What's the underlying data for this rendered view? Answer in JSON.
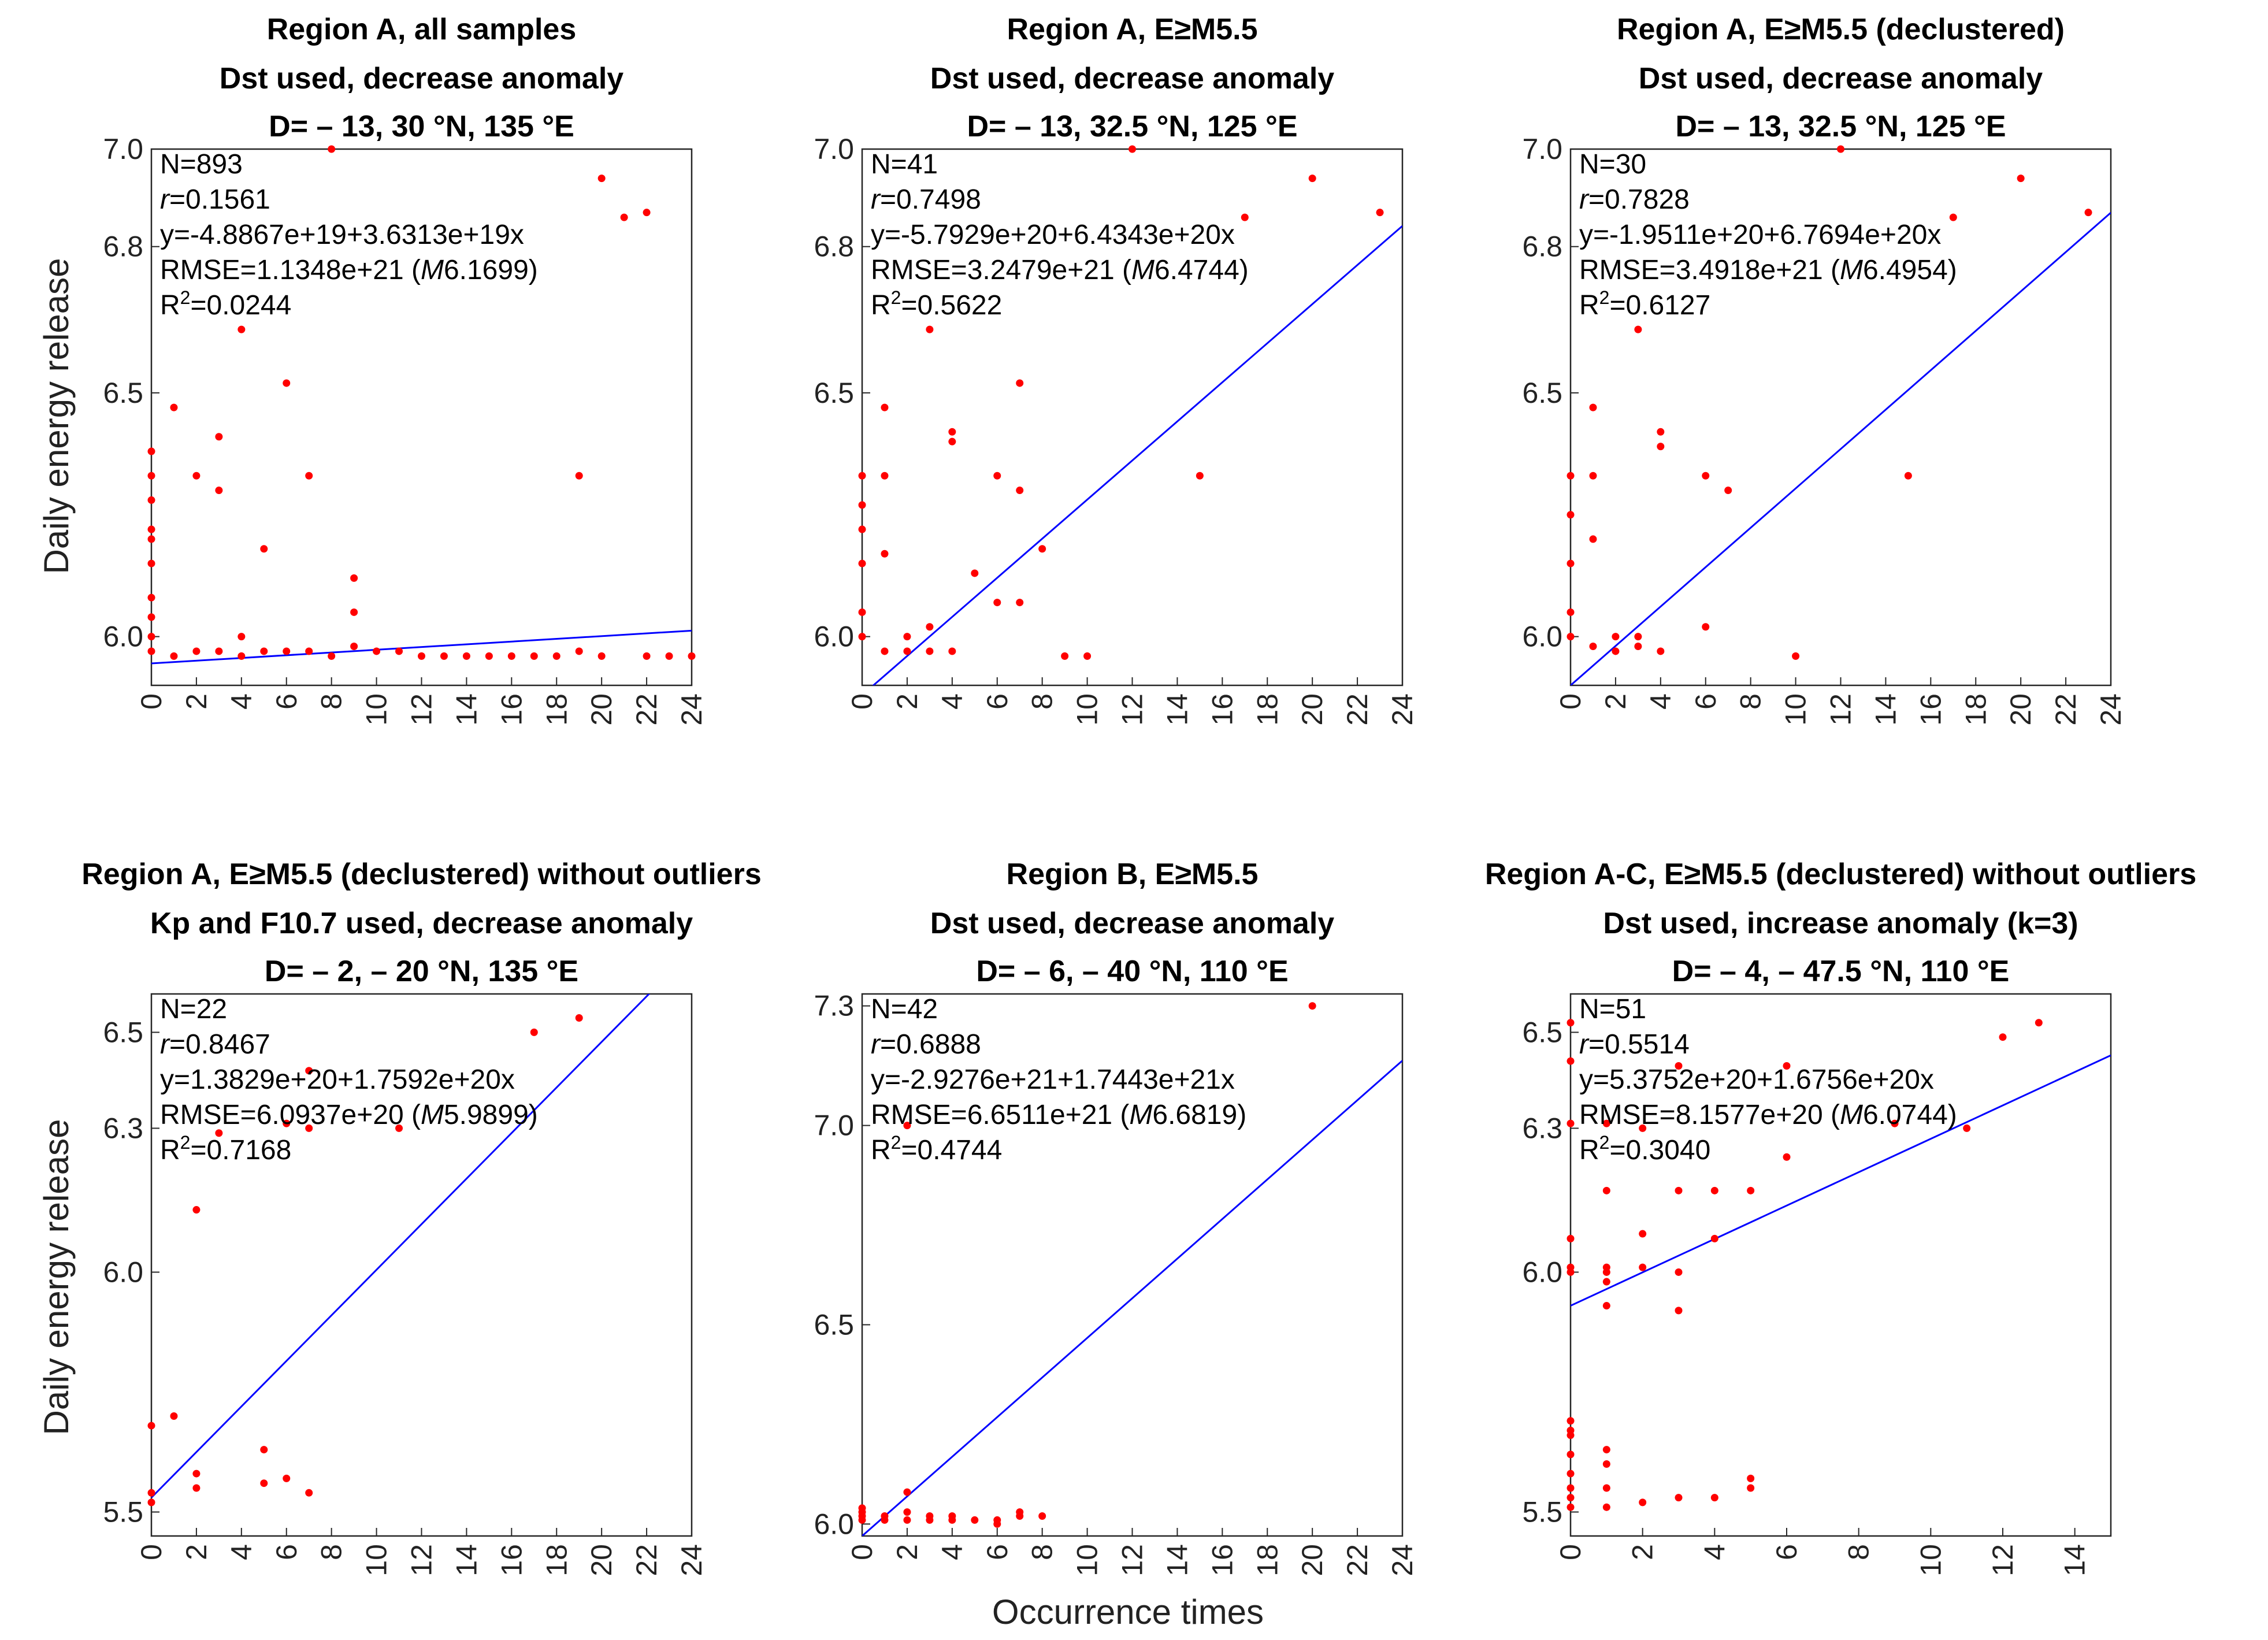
{
  "figure": {
    "ylabel": "Daily energy release",
    "xlabel": "Occurrence times"
  },
  "colors": {
    "points": "#ff0000",
    "fit_line": "#0000ff",
    "axes": "#262626"
  },
  "chart_data": [
    {
      "type": "scatter",
      "title_lines": [
        "Region A, all samples",
        "Dst used, decrease anomaly",
        "D= – 13, 30 °N, 135 °E"
      ],
      "xlim": [
        0,
        24
      ],
      "xticks": [
        0,
        2,
        4,
        6,
        8,
        10,
        12,
        14,
        16,
        18,
        20,
        22,
        24
      ],
      "ylim": [
        5.9,
        7.0
      ],
      "yticks": [
        6.0,
        6.5,
        6.8,
        7.0
      ],
      "stats": {
        "n": "N=893",
        "r_label": "r",
        "r_value": "=0.1561",
        "eq": "y=-4.8867e+19+3.6313e+19x",
        "rmse": "RMSE=1.1348e+21 (",
        "rmse_m": "M",
        "rmse_mag": "6.1699)",
        "r2": "R",
        "r2_sup": "2",
        "r2_value": "=0.0244"
      },
      "fit": {
        "intercept": 5.945,
        "slope": 0.0028
      },
      "points": [
        [
          0,
          6.38
        ],
        [
          0,
          6.33
        ],
        [
          0,
          6.28
        ],
        [
          0,
          6.22
        ],
        [
          0,
          6.2
        ],
        [
          0,
          6.15
        ],
        [
          0,
          6.08
        ],
        [
          0,
          6.04
        ],
        [
          0,
          6.0
        ],
        [
          0,
          5.97
        ],
        [
          1,
          6.47
        ],
        [
          1,
          5.96
        ],
        [
          2,
          6.33
        ],
        [
          2,
          5.97
        ],
        [
          3,
          6.41
        ],
        [
          3,
          6.3
        ],
        [
          3,
          5.97
        ],
        [
          4,
          6.63
        ],
        [
          4,
          6.0
        ],
        [
          4,
          5.96
        ],
        [
          5,
          6.18
        ],
        [
          5,
          5.97
        ],
        [
          6,
          6.52
        ],
        [
          6,
          5.97
        ],
        [
          7,
          6.33
        ],
        [
          7,
          5.97
        ],
        [
          8,
          7.0
        ],
        [
          8,
          5.96
        ],
        [
          9,
          6.12
        ],
        [
          9,
          6.05
        ],
        [
          9,
          5.98
        ],
        [
          10,
          5.97
        ],
        [
          11,
          5.97
        ],
        [
          12,
          5.96
        ],
        [
          13,
          5.96
        ],
        [
          14,
          5.96
        ],
        [
          15,
          5.96
        ],
        [
          16,
          5.96
        ],
        [
          17,
          5.96
        ],
        [
          18,
          5.96
        ],
        [
          19,
          6.33
        ],
        [
          19,
          5.97
        ],
        [
          20,
          6.94
        ],
        [
          20,
          5.96
        ],
        [
          21,
          6.86
        ],
        [
          22,
          6.87
        ],
        [
          22,
          5.96
        ],
        [
          23,
          5.96
        ],
        [
          24,
          5.96
        ]
      ]
    },
    {
      "type": "scatter",
      "title_lines": [
        "Region A, E≥M5.5",
        "Dst used, decrease anomaly",
        "D= – 13, 32.5 °N, 125 °E"
      ],
      "xlim": [
        0,
        24
      ],
      "xticks": [
        0,
        2,
        4,
        6,
        8,
        10,
        12,
        14,
        16,
        18,
        20,
        22,
        24
      ],
      "ylim": [
        5.9,
        7.0
      ],
      "yticks": [
        6.0,
        6.5,
        6.8,
        7.0
      ],
      "stats": {
        "n": "N=41",
        "r_label": "r",
        "r_value": "=0.7498",
        "eq": "y=-5.7929e+20+6.4343e+20x",
        "rmse": "RMSE=3.2479e+21 (",
        "rmse_m": "M",
        "rmse_mag": "6.4744)",
        "r2": "R",
        "r2_sup": "2",
        "r2_value": "=0.5622"
      },
      "fit": {
        "intercept": 5.88,
        "slope": 0.0401
      },
      "points": [
        [
          0,
          6.33
        ],
        [
          0,
          6.27
        ],
        [
          0,
          6.22
        ],
        [
          0,
          6.15
        ],
        [
          0,
          6.05
        ],
        [
          0,
          6.0
        ],
        [
          1,
          6.47
        ],
        [
          1,
          6.33
        ],
        [
          1,
          6.17
        ],
        [
          1,
          5.97
        ],
        [
          2,
          6.0
        ],
        [
          2,
          5.97
        ],
        [
          3,
          6.63
        ],
        [
          3,
          6.02
        ],
        [
          3,
          5.97
        ],
        [
          4,
          6.42
        ],
        [
          4,
          6.4
        ],
        [
          4,
          5.97
        ],
        [
          5,
          6.13
        ],
        [
          6,
          6.33
        ],
        [
          6,
          6.07
        ],
        [
          7,
          6.52
        ],
        [
          7,
          6.3
        ],
        [
          7,
          6.07
        ],
        [
          8,
          6.18
        ],
        [
          9,
          5.96
        ],
        [
          10,
          5.96
        ],
        [
          12,
          7.0
        ],
        [
          15,
          6.33
        ],
        [
          17,
          6.86
        ],
        [
          20,
          6.94
        ],
        [
          23,
          6.87
        ]
      ]
    },
    {
      "type": "scatter",
      "title_lines": [
        "Region A, E≥M5.5 (declustered)",
        "Dst used, decrease anomaly",
        "D= – 13, 32.5 °N, 125 °E"
      ],
      "xlim": [
        0,
        24
      ],
      "xticks": [
        0,
        2,
        4,
        6,
        8,
        10,
        12,
        14,
        16,
        18,
        20,
        22,
        24
      ],
      "ylim": [
        5.9,
        7.0
      ],
      "yticks": [
        6.0,
        6.5,
        6.8,
        7.0
      ],
      "stats": {
        "n": "N=30",
        "r_label": "r",
        "r_value": "=0.7828",
        "eq": "y=-1.9511e+20+6.7694e+20x",
        "rmse": "RMSE=3.4918e+21 (",
        "rmse_m": "M",
        "rmse_mag": "6.4954)",
        "r2": "R",
        "r2_sup": "2",
        "r2_value": "=0.6127"
      },
      "fit": {
        "intercept": 5.9,
        "slope": 0.0404
      },
      "points": [
        [
          0,
          6.33
        ],
        [
          0,
          6.25
        ],
        [
          0,
          6.15
        ],
        [
          0,
          6.05
        ],
        [
          0,
          6.0
        ],
        [
          1,
          6.47
        ],
        [
          1,
          6.33
        ],
        [
          1,
          6.2
        ],
        [
          1,
          5.98
        ],
        [
          2,
          6.0
        ],
        [
          2,
          5.97
        ],
        [
          3,
          6.63
        ],
        [
          3,
          6.0
        ],
        [
          3,
          5.98
        ],
        [
          4,
          6.42
        ],
        [
          4,
          6.39
        ],
        [
          4,
          5.97
        ],
        [
          6,
          6.33
        ],
        [
          6,
          6.02
        ],
        [
          7,
          6.3
        ],
        [
          10,
          5.96
        ],
        [
          12,
          7.0
        ],
        [
          15,
          6.33
        ],
        [
          17,
          6.86
        ],
        [
          20,
          6.94
        ],
        [
          23,
          6.87
        ]
      ]
    },
    {
      "type": "scatter",
      "title_lines": [
        "Region A, E≥M5.5 (declustered) without outliers",
        "Kp and F10.7 used, decrease anomaly",
        "D= – 2,  – 20 °N, 135 °E"
      ],
      "xlim": [
        0,
        24
      ],
      "xticks": [
        0,
        2,
        4,
        6,
        8,
        10,
        12,
        14,
        16,
        18,
        20,
        22,
        24
      ],
      "ylim": [
        5.45,
        6.58
      ],
      "yticks": [
        5.5,
        6.0,
        6.3,
        6.5
      ],
      "stats": {
        "n": "N=22",
        "r_label": "r",
        "r_value": "=0.8467",
        "eq": "y=1.3829e+20+1.7592e+20x",
        "rmse": "RMSE=6.0937e+20 (",
        "rmse_m": "M",
        "rmse_mag": "5.9899)",
        "r2": "R",
        "r2_sup": "2",
        "r2_value": "=0.7168"
      },
      "fit": {
        "intercept": 5.53,
        "slope": 0.0475
      },
      "points": [
        [
          0,
          5.68
        ],
        [
          0,
          5.54
        ],
        [
          0,
          5.52
        ],
        [
          1,
          5.7
        ],
        [
          2,
          6.13
        ],
        [
          2,
          5.58
        ],
        [
          2,
          5.55
        ],
        [
          3,
          6.29
        ],
        [
          5,
          5.63
        ],
        [
          5,
          5.56
        ],
        [
          6,
          6.31
        ],
        [
          6,
          5.57
        ],
        [
          7,
          6.42
        ],
        [
          7,
          6.3
        ],
        [
          7,
          5.54
        ],
        [
          11,
          6.3
        ],
        [
          17,
          6.5
        ],
        [
          19,
          6.53
        ]
      ]
    },
    {
      "type": "scatter",
      "title_lines": [
        "Region B, E≥M5.5",
        "Dst used, decrease anomaly",
        "D= – 6,  – 40 °N, 110 °E"
      ],
      "xlim": [
        0,
        24
      ],
      "xticks": [
        0,
        2,
        4,
        6,
        8,
        10,
        12,
        14,
        16,
        18,
        20,
        22,
        24
      ],
      "ylim": [
        5.97,
        7.33
      ],
      "yticks": [
        6.0,
        6.5,
        7.0,
        7.3
      ],
      "stats": {
        "n": "N=42",
        "r_label": "r",
        "r_value": "=0.6888",
        "eq": "y=-2.9276e+21+1.7443e+21x",
        "rmse": "RMSE=6.6511e+21 (",
        "rmse_m": "M",
        "rmse_mag": "6.6819)",
        "r2": "R",
        "r2_sup": "2",
        "r2_value": "=0.4744"
      },
      "fit": {
        "intercept": 5.97,
        "slope": 0.0497
      },
      "points": [
        [
          0,
          6.04
        ],
        [
          0,
          6.03
        ],
        [
          0,
          6.02
        ],
        [
          0,
          6.01
        ],
        [
          1,
          6.02
        ],
        [
          1,
          6.01
        ],
        [
          2,
          7.0
        ],
        [
          2,
          6.08
        ],
        [
          2,
          6.03
        ],
        [
          2,
          6.01
        ],
        [
          3,
          6.02
        ],
        [
          3,
          6.01
        ],
        [
          4,
          6.02
        ],
        [
          4,
          6.01
        ],
        [
          5,
          6.01
        ],
        [
          6,
          6.0
        ],
        [
          6,
          6.01
        ],
        [
          7,
          6.03
        ],
        [
          7,
          6.02
        ],
        [
          8,
          6.02
        ],
        [
          20,
          7.3
        ]
      ]
    },
    {
      "type": "scatter",
      "title_lines": [
        "Region A-C, E≥M5.5 (declustered) without outliers",
        "Dst used, increase anomaly (k=3)",
        "D= – 4,  – 47.5 °N, 110 °E"
      ],
      "xlim": [
        0,
        15
      ],
      "xticks": [
        0,
        2,
        4,
        6,
        8,
        10,
        12,
        14
      ],
      "ylim": [
        5.45,
        6.58
      ],
      "yticks": [
        5.5,
        6.0,
        6.3,
        6.5
      ],
      "stats": {
        "n": "N=51",
        "r_label": "r",
        "r_value": "=0.5514",
        "eq": "y=5.3752e+20+1.6756e+20x",
        "rmse": "RMSE=8.1577e+20 (",
        "rmse_m": "M",
        "rmse_mag": "6.0744)",
        "r2": "R",
        "r2_sup": "2",
        "r2_value": "=0.3040"
      },
      "fit": {
        "intercept": 5.93,
        "slope": 0.0348
      },
      "points": [
        [
          0,
          6.52
        ],
        [
          0,
          6.44
        ],
        [
          0,
          6.31
        ],
        [
          0,
          6.07
        ],
        [
          0,
          6.01
        ],
        [
          0,
          6.0
        ],
        [
          0,
          5.69
        ],
        [
          0,
          5.67
        ],
        [
          0,
          5.66
        ],
        [
          0,
          5.62
        ],
        [
          0,
          5.58
        ],
        [
          0,
          5.55
        ],
        [
          0,
          5.53
        ],
        [
          0,
          5.51
        ],
        [
          1,
          6.31
        ],
        [
          1,
          6.17
        ],
        [
          1,
          6.01
        ],
        [
          1,
          6.0
        ],
        [
          1,
          5.98
        ],
        [
          1,
          5.93
        ],
        [
          1,
          5.63
        ],
        [
          1,
          5.6
        ],
        [
          1,
          5.55
        ],
        [
          1,
          5.51
        ],
        [
          2,
          6.3
        ],
        [
          2,
          6.08
        ],
        [
          2,
          6.01
        ],
        [
          2,
          5.52
        ],
        [
          3,
          6.43
        ],
        [
          3,
          6.17
        ],
        [
          3,
          6.0
        ],
        [
          3,
          5.92
        ],
        [
          3,
          5.53
        ],
        [
          4,
          6.17
        ],
        [
          4,
          6.07
        ],
        [
          4,
          5.53
        ],
        [
          5,
          6.17
        ],
        [
          5,
          5.57
        ],
        [
          5,
          5.55
        ],
        [
          6,
          6.43
        ],
        [
          6,
          6.24
        ],
        [
          9,
          6.31
        ],
        [
          11,
          6.3
        ],
        [
          12,
          6.49
        ],
        [
          13,
          6.52
        ]
      ]
    }
  ]
}
